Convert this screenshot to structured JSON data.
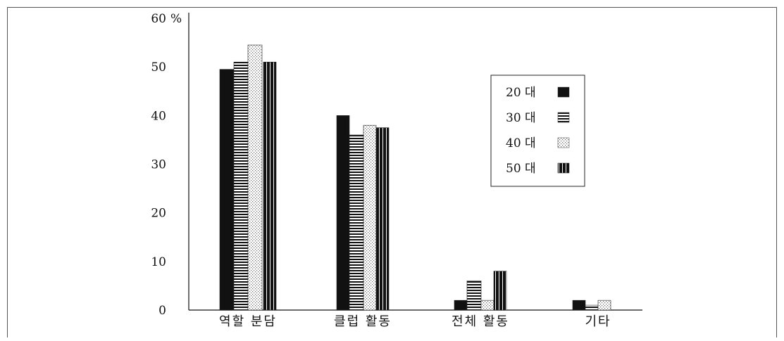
{
  "chart_data": {
    "type": "bar",
    "y_unit_label": "%",
    "ylim": [
      0,
      60
    ],
    "yticks": [
      0,
      10,
      20,
      30,
      40,
      50,
      60
    ],
    "categories": [
      "역할 분담",
      "클럽 활동",
      "전체 활동",
      "기타"
    ],
    "series": [
      {
        "name": "20 대",
        "pattern": "solid",
        "values": [
          49.5,
          40,
          2,
          2
        ]
      },
      {
        "name": "30 대",
        "pattern": "hlines",
        "values": [
          51,
          36,
          6,
          1
        ]
      },
      {
        "name": "40 대",
        "pattern": "dots",
        "values": [
          54.5,
          38,
          2,
          2
        ]
      },
      {
        "name": "50 대",
        "pattern": "vstripes",
        "values": [
          51,
          37.5,
          8,
          0
        ]
      }
    ],
    "legend_position": "right",
    "grid": false
  }
}
